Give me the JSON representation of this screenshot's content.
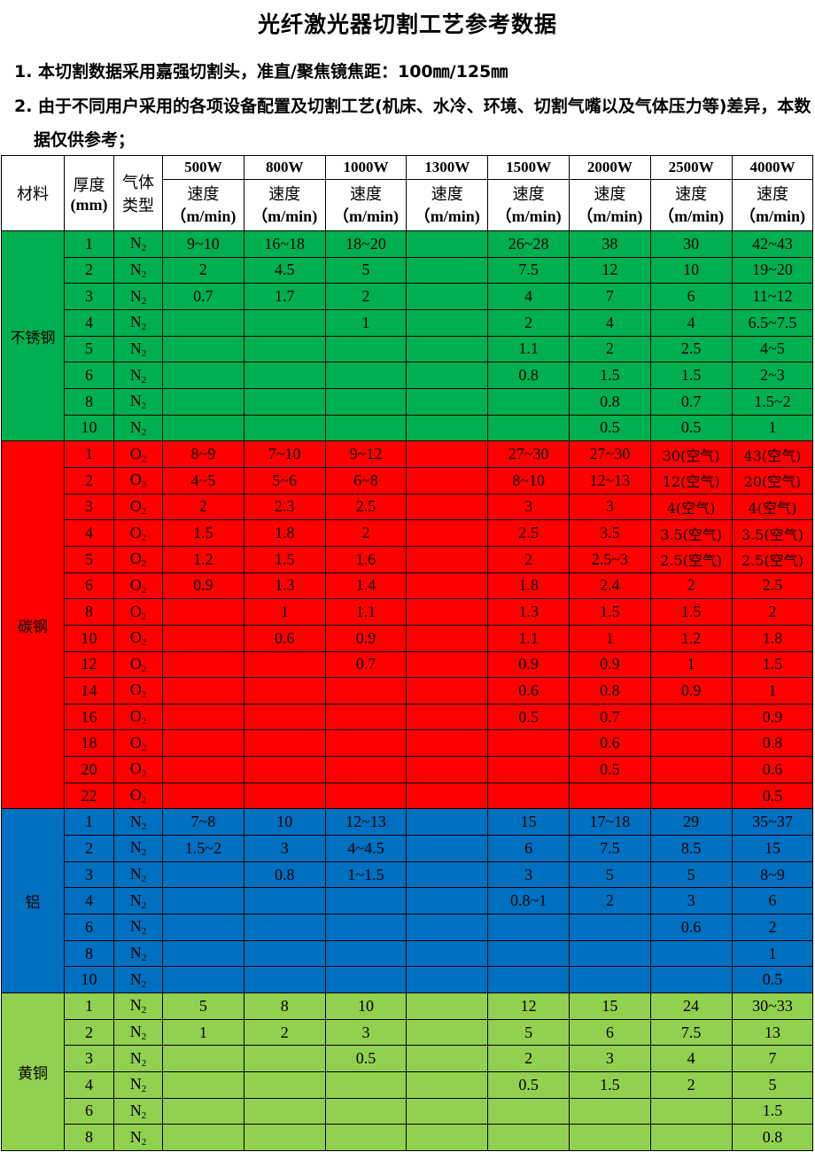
{
  "title": "光纤激光器切割工艺参考数据",
  "notes": [
    "1. 本切割数据采用嘉强切割头，准直/聚焦镜焦距：100㎜/125㎜",
    "2. 由于不同用户采用的各项设备配置及切割工艺(机床、水冷、环境、切割气嘴以及气体压力等)差异，本数据仅供参考；"
  ],
  "headers": {
    "material": "材料",
    "thickness": "厚度",
    "thickness_unit": "(mm)",
    "gas": "气体",
    "gas2": "类型",
    "speed": "速度",
    "speed_unit": "（m/min)",
    "powers": [
      "500W",
      "800W",
      "1000W",
      "1300W",
      "1500W",
      "2000W",
      "2500W",
      "4000W"
    ]
  },
  "groups": [
    {
      "material": "不锈钢",
      "gas": "N2",
      "color": "#00B050",
      "rows": [
        [
          "1",
          "9~10",
          "16~18",
          "18~20",
          "",
          "26~28",
          "38",
          "30",
          "42~43"
        ],
        [
          "2",
          "2",
          "4.5",
          "5",
          "",
          "7.5",
          "12",
          "10",
          "19~20"
        ],
        [
          "3",
          "0.7",
          "1.7",
          "2",
          "",
          "4",
          "7",
          "6",
          "11~12"
        ],
        [
          "4",
          "",
          "",
          "1",
          "",
          "2",
          "4",
          "4",
          "6.5~7.5"
        ],
        [
          "5",
          "",
          "",
          "",
          "",
          "1.1",
          "2",
          "2.5",
          "4~5"
        ],
        [
          "6",
          "",
          "",
          "",
          "",
          "0.8",
          "1.5",
          "1.5",
          "2~3"
        ],
        [
          "8",
          "",
          "",
          "",
          "",
          "",
          "0.8",
          "0.7",
          "1.5~2"
        ],
        [
          "10",
          "",
          "",
          "",
          "",
          "",
          "0.5",
          "0.5",
          "1"
        ]
      ]
    },
    {
      "material": "碳钢",
      "gas": "O2",
      "color": "#FF0000",
      "rows": [
        [
          "1",
          "8~9",
          "7~10",
          "9~12",
          "",
          "27~30",
          "27~30",
          "30(空气)",
          "43(空气)"
        ],
        [
          "2",
          "4~5",
          "5~6",
          "6~8",
          "",
          "8~10",
          "12~13",
          "12(空气)",
          "20(空气)"
        ],
        [
          "3",
          "2",
          "2.3",
          "2.5",
          "",
          "3",
          "3",
          "4(空气)",
          "4(空气)"
        ],
        [
          "4",
          "1.5",
          "1.8",
          "2",
          "",
          "2.5",
          "3.5",
          "3.5(空气)",
          "3.5(空气)"
        ],
        [
          "5",
          "1.2",
          "1.5",
          "1.6",
          "",
          "2",
          "2.5~3",
          "2.5(空气)",
          "2.5(空气)"
        ],
        [
          "6",
          "0.9",
          "1.3",
          "1.4",
          "",
          "1.8",
          "2.4",
          "2",
          "2.5"
        ],
        [
          "8",
          "",
          "1",
          "1.1",
          "",
          "1.3",
          "1.5",
          "1.5",
          "2"
        ],
        [
          "10",
          "",
          "0.6",
          "0.9",
          "",
          "1.1",
          "1",
          "1.2",
          "1.8"
        ],
        [
          "12",
          "",
          "",
          "0.7",
          "",
          "0.9",
          "0.9",
          "1",
          "1.5"
        ],
        [
          "14",
          "",
          "",
          "",
          "",
          "0.6",
          "0.8",
          "0.9",
          "1"
        ],
        [
          "16",
          "",
          "",
          "",
          "",
          "0.5",
          "0.7",
          "",
          "0.9"
        ],
        [
          "18",
          "",
          "",
          "",
          "",
          "",
          "0.6",
          "",
          "0.8"
        ],
        [
          "20",
          "",
          "",
          "",
          "",
          "",
          "0.5",
          "",
          "0.6"
        ],
        [
          "22",
          "",
          "",
          "",
          "",
          "",
          "",
          "",
          "0.5"
        ]
      ]
    },
    {
      "material": "铝",
      "gas": "N2",
      "color": "#0070C0",
      "rows": [
        [
          "1",
          "7~8",
          "10",
          "12~13",
          "",
          "15",
          "17~18",
          "29",
          "35~37"
        ],
        [
          "2",
          "1.5~2",
          "3",
          "4~4.5",
          "",
          "6",
          "7.5",
          "8.5",
          "15"
        ],
        [
          "3",
          "",
          "0.8",
          "1~1.5",
          "",
          "3",
          "5",
          "5",
          "8~9"
        ],
        [
          "4",
          "",
          "",
          "",
          "",
          "0.8~1",
          "2",
          "3",
          "6"
        ],
        [
          "6",
          "",
          "",
          "",
          "",
          "",
          "",
          "0.6",
          "2"
        ],
        [
          "8",
          "",
          "",
          "",
          "",
          "",
          "",
          "",
          "1"
        ],
        [
          "10",
          "",
          "",
          "",
          "",
          "",
          "",
          "",
          "0.5"
        ]
      ]
    },
    {
      "material": "黄铜",
      "gas": "N2",
      "color": "#92D050",
      "rows": [
        [
          "1",
          "5",
          "8",
          "10",
          "",
          "12",
          "15",
          "24",
          "30~33"
        ],
        [
          "2",
          "1",
          "2",
          "3",
          "",
          "5",
          "6",
          "7.5",
          "13"
        ],
        [
          "3",
          "",
          "",
          "0.5",
          "",
          "2",
          "3",
          "4",
          "7"
        ],
        [
          "4",
          "",
          "",
          "",
          "",
          "0.5",
          "1.5",
          "2",
          "5"
        ],
        [
          "6",
          "",
          "",
          "",
          "",
          "",
          "",
          "",
          "1.5"
        ],
        [
          "8",
          "",
          "",
          "",
          "",
          "",
          "",
          "",
          "0.8"
        ]
      ]
    }
  ]
}
